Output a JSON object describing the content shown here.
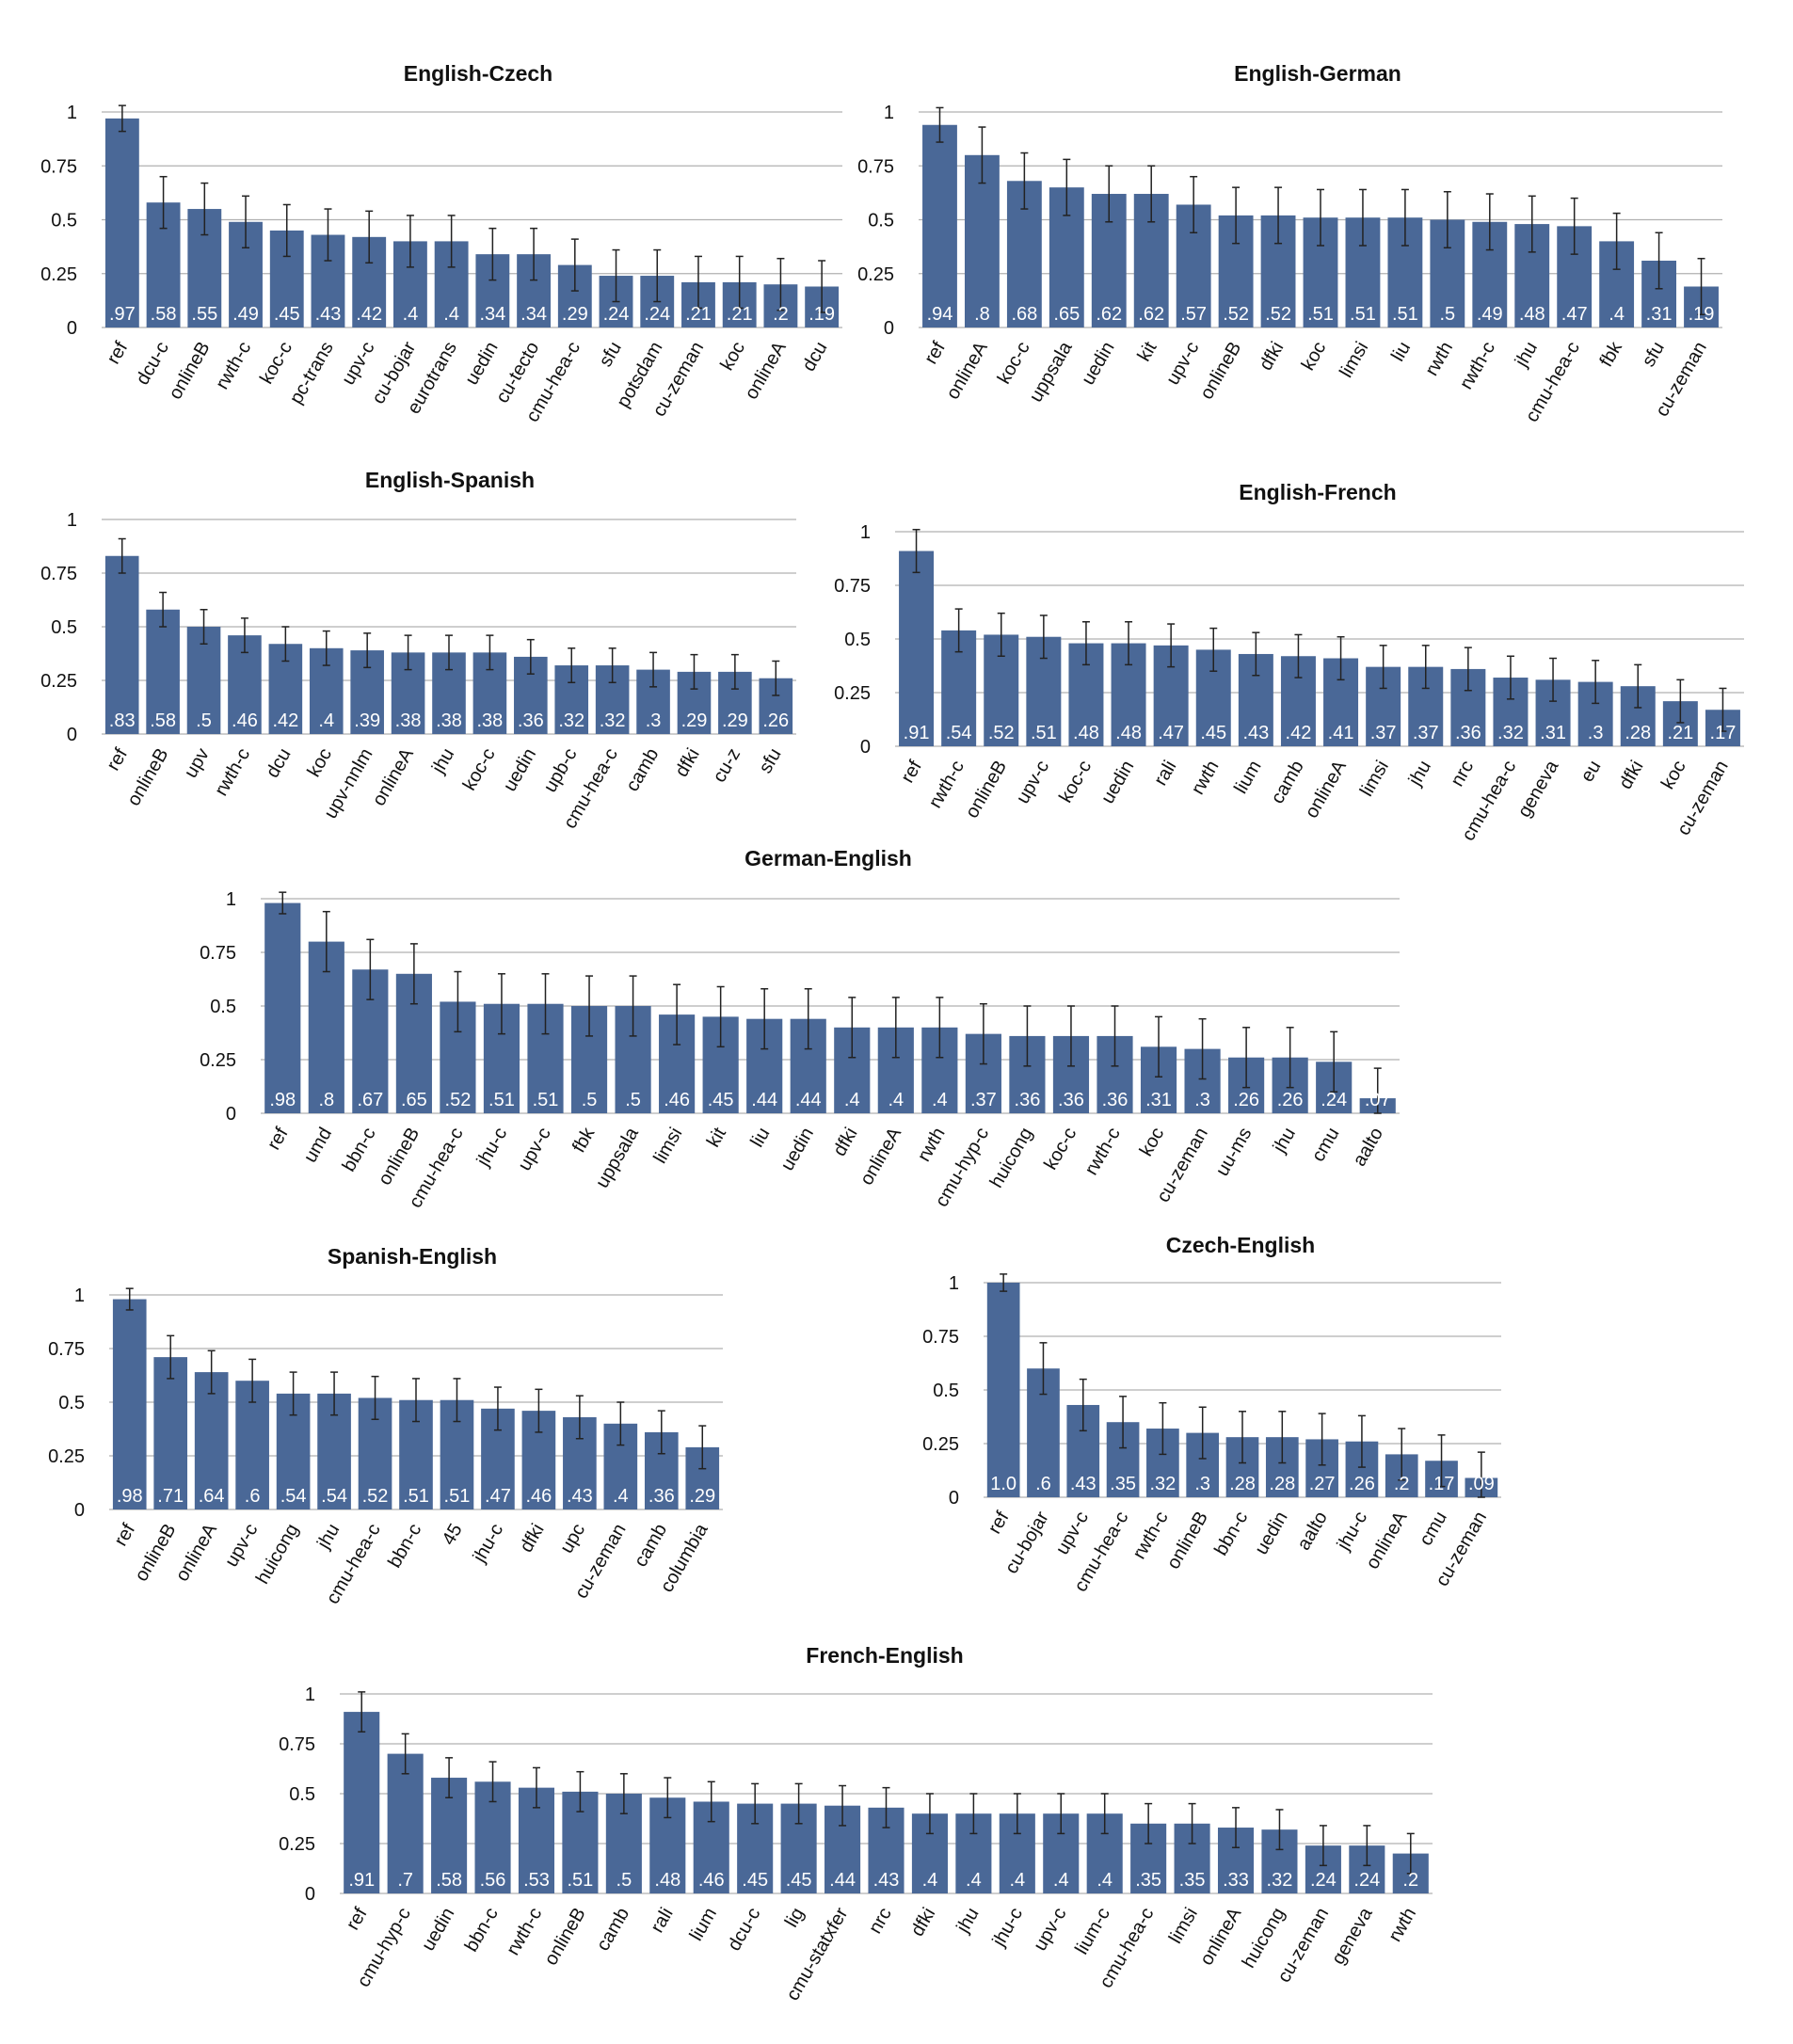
{
  "chart_data": [
    {
      "type": "bar",
      "title": "English-Czech",
      "yticks": [
        "0",
        "0.25",
        "0.5",
        "0.75",
        "1"
      ],
      "ylim": [
        0,
        1
      ],
      "grid": true,
      "categories": [
        "ref",
        "dcu-c",
        "onlineB",
        "rwth-c",
        "koc-c",
        "pc-trans",
        "upv-c",
        "cu-bojar",
        "eurotrans",
        "uedin",
        "cu-tecto",
        "cmu-hea-c",
        "sfu",
        "potsdam",
        "cu-zeman",
        "koc",
        "onlineA",
        "dcu"
      ],
      "values": [
        0.97,
        0.58,
        0.55,
        0.49,
        0.45,
        0.43,
        0.42,
        0.4,
        0.4,
        0.34,
        0.34,
        0.29,
        0.24,
        0.24,
        0.21,
        0.21,
        0.2,
        0.19
      ],
      "labels": [
        ".97",
        ".58",
        ".55",
        ".49",
        ".45",
        ".43",
        ".42",
        ".4",
        ".4",
        ".34",
        ".34",
        ".29",
        ".24",
        ".24",
        ".21",
        ".21",
        ".2",
        ".19"
      ],
      "error_bars": [
        0.06,
        0.12,
        0.12,
        0.12,
        0.12,
        0.12,
        0.12,
        0.12,
        0.12,
        0.12,
        0.12,
        0.12,
        0.12,
        0.12,
        0.12,
        0.12,
        0.12,
        0.12
      ]
    },
    {
      "type": "bar",
      "title": "English-German",
      "yticks": [
        "0",
        "0.25",
        "0.5",
        "0.75",
        "1"
      ],
      "ylim": [
        0,
        1
      ],
      "grid": true,
      "categories": [
        "ref",
        "onlineA",
        "koc-c",
        "uppsala",
        "uedin",
        "kit",
        "upv-c",
        "onlineB",
        "dfki",
        "koc",
        "limsi",
        "liu",
        "rwth",
        "rwth-c",
        "jhu",
        "cmu-hea-c",
        "fbk",
        "sfu",
        "cu-zeman"
      ],
      "values": [
        0.94,
        0.8,
        0.68,
        0.65,
        0.62,
        0.62,
        0.57,
        0.52,
        0.52,
        0.51,
        0.51,
        0.51,
        0.5,
        0.49,
        0.48,
        0.47,
        0.4,
        0.31,
        0.19
      ],
      "labels": [
        ".94",
        ".8",
        ".68",
        ".65",
        ".62",
        ".62",
        ".57",
        ".52",
        ".52",
        ".51",
        ".51",
        ".51",
        ".5",
        ".49",
        ".48",
        ".47",
        ".4",
        ".31",
        ".19"
      ],
      "error_bars": [
        0.08,
        0.13,
        0.13,
        0.13,
        0.13,
        0.13,
        0.13,
        0.13,
        0.13,
        0.13,
        0.13,
        0.13,
        0.13,
        0.13,
        0.13,
        0.13,
        0.13,
        0.13,
        0.13
      ]
    },
    {
      "type": "bar",
      "title": "English-Spanish",
      "yticks": [
        "0",
        "0.25",
        "0.5",
        "0.75",
        "1"
      ],
      "ylim": [
        0,
        1
      ],
      "grid": true,
      "categories": [
        "ref",
        "onlineB",
        "upv",
        "rwth-c",
        "dcu",
        "koc",
        "upv-nnlm",
        "onlineA",
        "jhu",
        "koc-c",
        "uedin",
        "upb-c",
        "cmu-hea-c",
        "camb",
        "dfki",
        "cu-z",
        "sfu"
      ],
      "values": [
        0.83,
        0.58,
        0.5,
        0.46,
        0.42,
        0.4,
        0.39,
        0.38,
        0.38,
        0.38,
        0.36,
        0.32,
        0.32,
        0.3,
        0.29,
        0.29,
        0.26
      ],
      "labels": [
        ".83",
        ".58",
        ".5",
        ".46",
        ".42",
        ".4",
        ".39",
        ".38",
        ".38",
        ".38",
        ".36",
        ".32",
        ".32",
        ".3",
        ".29",
        ".29",
        ".26"
      ],
      "error_bars": [
        0.08,
        0.08,
        0.08,
        0.08,
        0.08,
        0.08,
        0.08,
        0.08,
        0.08,
        0.08,
        0.08,
        0.08,
        0.08,
        0.08,
        0.08,
        0.08,
        0.08
      ]
    },
    {
      "type": "bar",
      "title": "English-French",
      "yticks": [
        "0",
        "0.25",
        "0.5",
        "0.75",
        "1"
      ],
      "ylim": [
        0,
        1
      ],
      "grid": true,
      "categories": [
        "ref",
        "rwth-c",
        "onlineB",
        "upv-c",
        "koc-c",
        "uedin",
        "rali",
        "rwth",
        "lium",
        "camb",
        "onlineA",
        "limsi",
        "jhu",
        "nrc",
        "cmu-hea-c",
        "geneva",
        "eu",
        "dfki",
        "koc",
        "cu-zeman"
      ],
      "values": [
        0.91,
        0.54,
        0.52,
        0.51,
        0.48,
        0.48,
        0.47,
        0.45,
        0.43,
        0.42,
        0.41,
        0.37,
        0.37,
        0.36,
        0.32,
        0.31,
        0.3,
        0.28,
        0.21,
        0.17
      ],
      "labels": [
        ".91",
        ".54",
        ".52",
        ".51",
        ".48",
        ".48",
        ".47",
        ".45",
        ".43",
        ".42",
        ".41",
        ".37",
        ".37",
        ".36",
        ".32",
        ".31",
        ".3",
        ".28",
        ".21",
        ".17"
      ],
      "error_bars": [
        0.1,
        0.1,
        0.1,
        0.1,
        0.1,
        0.1,
        0.1,
        0.1,
        0.1,
        0.1,
        0.1,
        0.1,
        0.1,
        0.1,
        0.1,
        0.1,
        0.1,
        0.1,
        0.1,
        0.1
      ]
    },
    {
      "type": "bar",
      "title": "German-English",
      "yticks": [
        "0",
        "0.25",
        "0.5",
        "0.75",
        "1"
      ],
      "ylim": [
        0,
        1
      ],
      "grid": true,
      "categories": [
        "ref",
        "umd",
        "bbn-c",
        "onlineB",
        "cmu-hea-c",
        "jhu-c",
        "upv-c",
        "fbk",
        "uppsala",
        "limsi",
        "kit",
        "liu",
        "uedin",
        "dfki",
        "onlineA",
        "rwth",
        "cmu-hyp-c",
        "huicong",
        "koc-c",
        "rwth-c",
        "koc",
        "cu-zeman",
        "uu-ms",
        "jhu",
        "cmu",
        "aalto"
      ],
      "values": [
        0.98,
        0.8,
        0.67,
        0.65,
        0.52,
        0.51,
        0.51,
        0.5,
        0.5,
        0.46,
        0.45,
        0.44,
        0.44,
        0.4,
        0.4,
        0.4,
        0.37,
        0.36,
        0.36,
        0.36,
        0.31,
        0.3,
        0.26,
        0.26,
        0.24,
        0.07
      ],
      "labels": [
        ".98",
        ".8",
        ".67",
        ".65",
        ".52",
        ".51",
        ".51",
        ".5",
        ".5",
        ".46",
        ".45",
        ".44",
        ".44",
        ".4",
        ".4",
        ".4",
        ".37",
        ".36",
        ".36",
        ".36",
        ".31",
        ".3",
        ".26",
        ".26",
        ".24",
        ".07"
      ],
      "error_bars": [
        0.05,
        0.14,
        0.14,
        0.14,
        0.14,
        0.14,
        0.14,
        0.14,
        0.14,
        0.14,
        0.14,
        0.14,
        0.14,
        0.14,
        0.14,
        0.14,
        0.14,
        0.14,
        0.14,
        0.14,
        0.14,
        0.14,
        0.14,
        0.14,
        0.14,
        0.14
      ]
    },
    {
      "type": "bar",
      "title": "Spanish-English",
      "yticks": [
        "0",
        "0.25",
        "0.5",
        "0.75",
        "1"
      ],
      "ylim": [
        0,
        1
      ],
      "grid": true,
      "categories": [
        "ref",
        "onlineB",
        "onlineA",
        "upv-c",
        "huicong",
        "jhu",
        "cmu-hea-c",
        "bbn-c",
        "45",
        "jhu-c",
        "dfki",
        "upc",
        "cu-zeman",
        "camb",
        "columbia"
      ],
      "values": [
        0.98,
        0.71,
        0.64,
        0.6,
        0.54,
        0.54,
        0.52,
        0.51,
        0.51,
        0.47,
        0.46,
        0.43,
        0.4,
        0.36,
        0.29
      ],
      "labels": [
        ".98",
        ".71",
        ".64",
        ".6",
        ".54",
        ".54",
        ".52",
        ".51",
        ".51",
        ".47",
        ".46",
        ".43",
        ".4",
        ".36",
        ".29"
      ],
      "error_bars": [
        0.05,
        0.1,
        0.1,
        0.1,
        0.1,
        0.1,
        0.1,
        0.1,
        0.1,
        0.1,
        0.1,
        0.1,
        0.1,
        0.1,
        0.1
      ]
    },
    {
      "type": "bar",
      "title": "Czech-English",
      "yticks": [
        "0",
        "0.25",
        "0.5",
        "0.75",
        "1"
      ],
      "ylim": [
        0,
        1
      ],
      "grid": true,
      "categories": [
        "ref",
        "cu-bojar",
        "upv-c",
        "cmu-hea-c",
        "rwth-c",
        "onlineB",
        "bbn-c",
        "uedin",
        "aalto",
        "jhu-c",
        "onlineA",
        "cmu",
        "cu-zeman"
      ],
      "values": [
        1.0,
        0.6,
        0.43,
        0.35,
        0.32,
        0.3,
        0.28,
        0.28,
        0.27,
        0.26,
        0.2,
        0.17,
        0.09
      ],
      "labels": [
        "1.0",
        ".6",
        ".43",
        ".35",
        ".32",
        ".3",
        ".28",
        ".28",
        ".27",
        ".26",
        ".2",
        ".17",
        ".09"
      ],
      "error_bars": [
        0.04,
        0.12,
        0.12,
        0.12,
        0.12,
        0.12,
        0.12,
        0.12,
        0.12,
        0.12,
        0.12,
        0.12,
        0.12
      ]
    },
    {
      "type": "bar",
      "title": "French-English",
      "yticks": [
        "0",
        "0.25",
        "0.5",
        "0.75",
        "1"
      ],
      "ylim": [
        0,
        1
      ],
      "grid": true,
      "categories": [
        "ref",
        "cmu-hyp-c",
        "uedin",
        "bbn-c",
        "rwth-c",
        "onlineB",
        "camb",
        "rali",
        "lium",
        "dcu-c",
        "lig",
        "cmu-statxfer",
        "nrc",
        "dfki",
        "jhu",
        "jhu-c",
        "upv-c",
        "lium-c",
        "cmu-hea-c",
        "limsi",
        "onlineA",
        "huicong",
        "cu-zeman",
        "geneva",
        "rwth"
      ],
      "values": [
        0.91,
        0.7,
        0.58,
        0.56,
        0.53,
        0.51,
        0.5,
        0.48,
        0.46,
        0.45,
        0.45,
        0.44,
        0.43,
        0.4,
        0.4,
        0.4,
        0.4,
        0.4,
        0.35,
        0.35,
        0.33,
        0.32,
        0.24,
        0.24,
        0.2
      ],
      "labels": [
        ".91",
        ".7",
        ".58",
        ".56",
        ".53",
        ".51",
        ".5",
        ".48",
        ".46",
        ".45",
        ".45",
        ".44",
        ".43",
        ".4",
        ".4",
        ".4",
        ".4",
        ".4",
        ".35",
        ".35",
        ".33",
        ".32",
        ".24",
        ".24",
        ".2"
      ],
      "error_bars": [
        0.1,
        0.1,
        0.1,
        0.1,
        0.1,
        0.1,
        0.1,
        0.1,
        0.1,
        0.1,
        0.1,
        0.1,
        0.1,
        0.1,
        0.1,
        0.1,
        0.1,
        0.1,
        0.1,
        0.1,
        0.1,
        0.1,
        0.1,
        0.1,
        0.1
      ]
    }
  ]
}
